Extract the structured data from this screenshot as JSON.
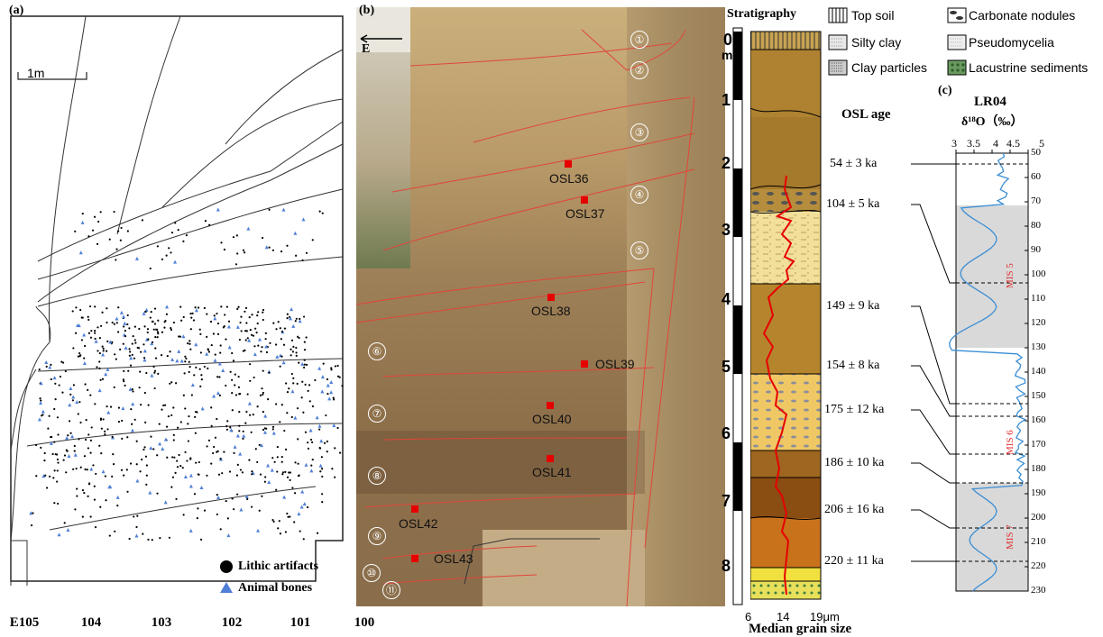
{
  "panel_a": {
    "label": "(a)",
    "scale_label": "1m",
    "legend": {
      "lithic": "Lithic artifacts",
      "bones": "Animal bones"
    },
    "x_axis": [
      "E105",
      "104",
      "103",
      "102",
      "101",
      "100"
    ],
    "colors": {
      "lithic": "#000000",
      "bones": "#4f7fd6"
    }
  },
  "panel_b": {
    "label": "(b)",
    "direction": "E",
    "layers": [
      "①",
      "②",
      "③",
      "④",
      "⑤",
      "⑥",
      "⑦",
      "⑧",
      "⑨",
      "⑩",
      "⑪"
    ],
    "samples": [
      "OSL36",
      "OSL37",
      "OSL38",
      "OSL39",
      "OSL40",
      "OSL41",
      "OSL42",
      "OSL43"
    ]
  },
  "strat": {
    "title": "Stratigraphy",
    "depth_unit": "m",
    "depths": [
      "0",
      "1",
      "2",
      "3",
      "4",
      "5",
      "6",
      "7",
      "8"
    ],
    "grain_ticks": [
      "6",
      "14",
      "19μm"
    ],
    "grain_label": "Median grain size",
    "legend": [
      "Top soil",
      "Silty clay",
      "Clay particles",
      "Carbonate nodules",
      "Pseudomycelia",
      "Lacustrine sediments"
    ]
  },
  "panel_c": {
    "label": "(c)",
    "record": "LR04",
    "isotope": "δ¹⁸O（‰）",
    "osl_header": "OSL age",
    "x_ticks": [
      "3",
      "3.5",
      "4",
      "4.5",
      "5"
    ],
    "y_ticks": [
      "50",
      "60",
      "70",
      "80",
      "90",
      "100",
      "110",
      "120",
      "130",
      "140",
      "150",
      "160",
      "170",
      "180",
      "190",
      "200",
      "210",
      "220",
      "230"
    ],
    "ages": [
      "54 ± 3 ka",
      "104 ± 5 ka",
      "149 ± 9 ka",
      "154 ± 8 ka",
      "175 ± 12 ka",
      "186 ± 10 ka",
      "206 ± 16 ka",
      "220 ± 11 ka"
    ],
    "mis": [
      "MIS 5",
      "MIS 6",
      "MIS 7"
    ]
  }
}
